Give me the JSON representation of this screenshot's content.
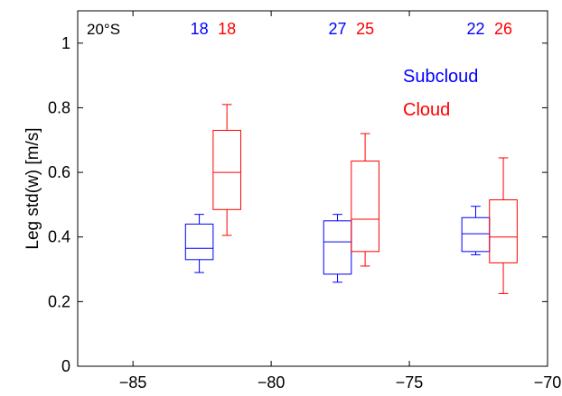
{
  "chart_data": {
    "type": "boxplot",
    "ylabel": "Leg std(w) [m/s]",
    "xlabel": "",
    "xlim": [
      -87,
      -70
    ],
    "ylim": [
      0,
      1.1
    ],
    "xticks": [
      -85,
      -80,
      -75,
      -70
    ],
    "yticks": [
      0,
      0.2,
      0.4,
      0.6,
      0.8,
      1
    ],
    "x_tick_labels": [
      "−85",
      "−80",
      "−75",
      "−70"
    ],
    "y_tick_labels": [
      "0",
      "0.2",
      "0.4",
      "0.6",
      "0.8",
      "1"
    ],
    "corner_label": "20°S",
    "legend": {
      "placement": "top-right",
      "entries": [
        {
          "label": "Subcloud",
          "color": "#0000ff"
        },
        {
          "label": "Cloud",
          "color": "#ff0000"
        }
      ]
    },
    "series": [
      {
        "name": "Subcloud",
        "color": "#0000ff",
        "boxes": [
          {
            "x": -82.6,
            "whisker_low": 0.29,
            "q1": 0.33,
            "median": 0.365,
            "q3": 0.44,
            "whisker_high": 0.47,
            "count": "18"
          },
          {
            "x": -77.6,
            "whisker_low": 0.26,
            "q1": 0.285,
            "median": 0.385,
            "q3": 0.45,
            "whisker_high": 0.47,
            "count": "27"
          },
          {
            "x": -72.6,
            "whisker_low": 0.345,
            "q1": 0.355,
            "median": 0.41,
            "q3": 0.46,
            "whisker_high": 0.495,
            "count": "22"
          }
        ]
      },
      {
        "name": "Cloud",
        "color": "#ff0000",
        "boxes": [
          {
            "x": -81.6,
            "whisker_low": 0.405,
            "q1": 0.485,
            "median": 0.6,
            "q3": 0.73,
            "whisker_high": 0.81,
            "count": "18"
          },
          {
            "x": -76.6,
            "whisker_low": 0.31,
            "q1": 0.355,
            "median": 0.455,
            "q3": 0.635,
            "whisker_high": 0.72,
            "count": "25"
          },
          {
            "x": -71.6,
            "whisker_low": 0.225,
            "q1": 0.32,
            "median": 0.4,
            "q3": 0.515,
            "whisker_high": 0.645,
            "count": "26"
          }
        ]
      }
    ]
  }
}
